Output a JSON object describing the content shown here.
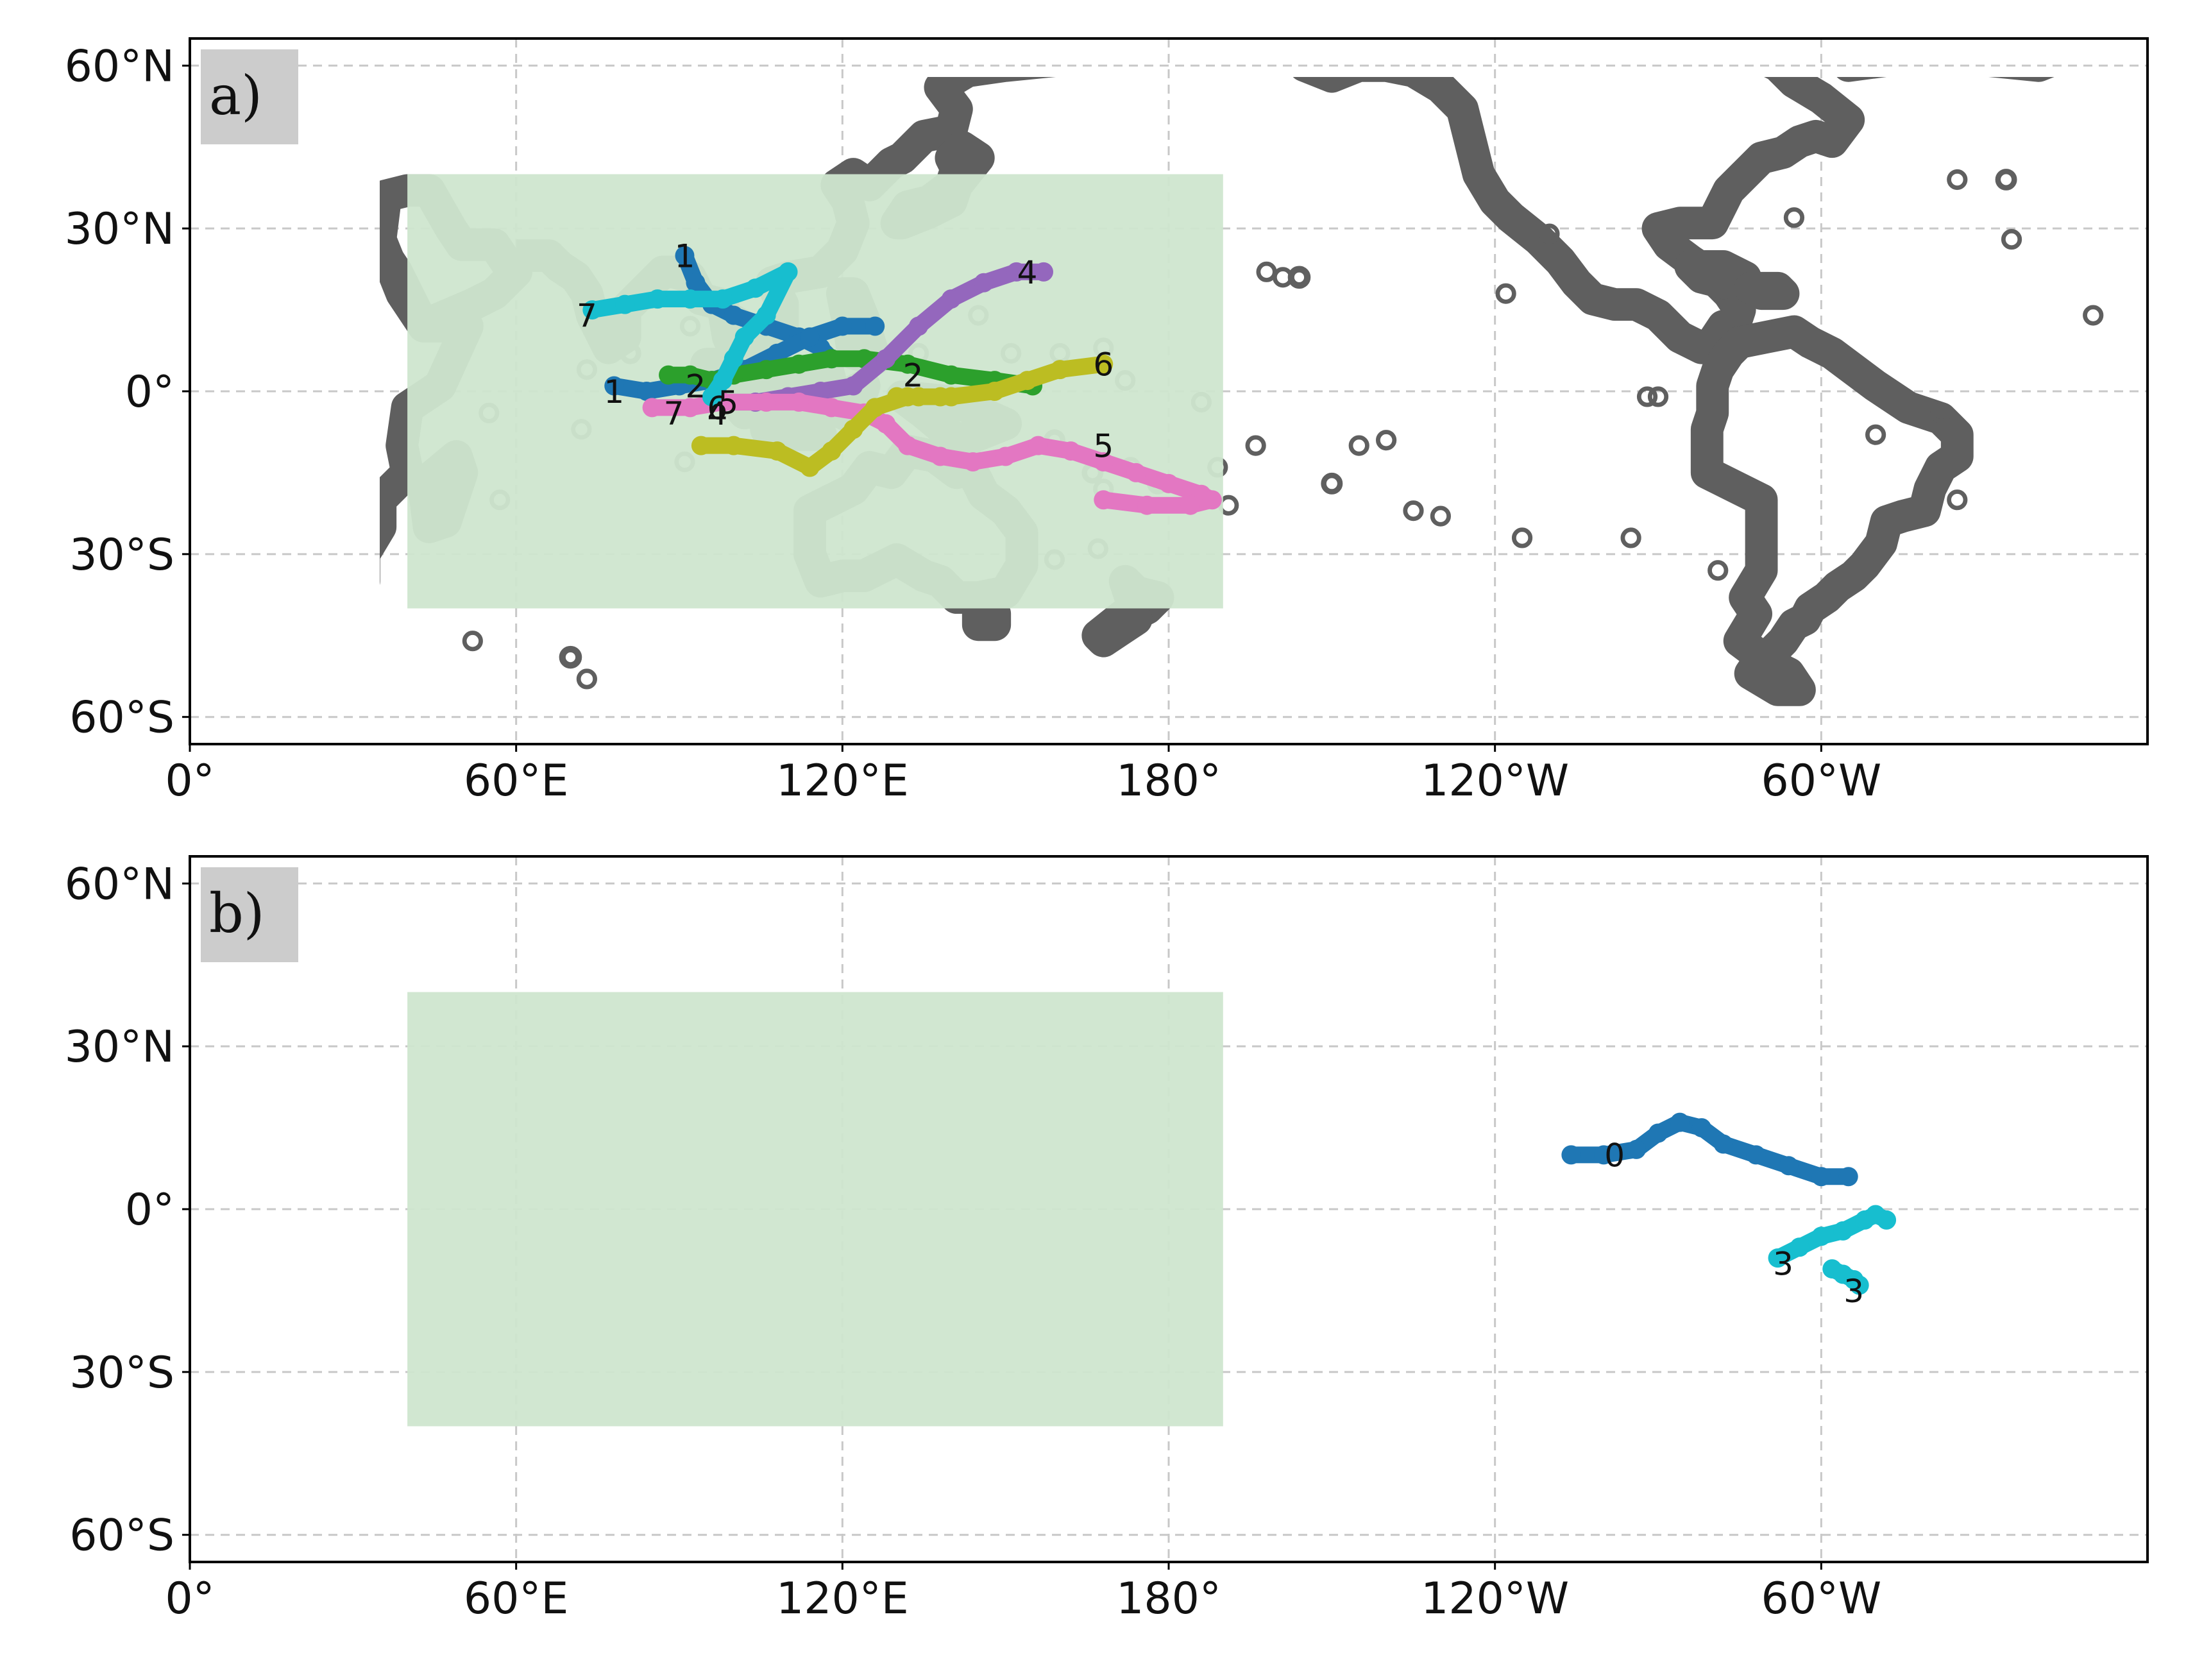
{
  "figure": {
    "panels": [
      {
        "id": "a",
        "label": "a)",
        "x_ticks": [
          "0°",
          "60°E",
          "120°E",
          "180°",
          "120°W",
          "60°W"
        ],
        "y_ticks": [
          "60°N",
          "30°N",
          "0°",
          "30°S",
          "60°S"
        ],
        "highlight_region": {
          "lon_min": 40,
          "lon_max": 190,
          "lat_min": -40,
          "lat_max": 40,
          "color": "#cfe6cf"
        }
      },
      {
        "id": "b",
        "label": "b)",
        "x_ticks": [
          "0°",
          "60°E",
          "120°E",
          "180°",
          "120°W",
          "60°W"
        ],
        "y_ticks": [
          "60°N",
          "30°N",
          "0°",
          "30°S",
          "60°S"
        ],
        "highlight_region": {
          "lon_min": 40,
          "lon_max": 190,
          "lat_min": -40,
          "lat_max": 40,
          "color": "#cfe6cf"
        }
      }
    ]
  },
  "chart_data": [
    {
      "type": "scatter",
      "panel": "a",
      "projection": "PlateCarree, central_longitude=180",
      "xlim": [
        0,
        360
      ],
      "ylim": [
        -65,
        65
      ],
      "grid": true,
      "coastline_color": "#5f5f5f",
      "tracks": [
        {
          "label": "1",
          "color": "#1f77b4",
          "points": [
            [
              91,
              25
            ],
            [
              93,
              20
            ],
            [
              96,
              16
            ],
            [
              100,
              14
            ],
            [
              106,
              12
            ],
            [
              112,
              10
            ],
            [
              116,
              8
            ],
            [
              118,
              6
            ]
          ]
        },
        {
          "label": "1",
          "color": "#1f77b4",
          "points": [
            [
              78,
              1
            ],
            [
              84,
              0
            ],
            [
              90,
              1
            ],
            [
              96,
              2
            ],
            [
              102,
              4
            ],
            [
              108,
              7
            ],
            [
              114,
              10
            ],
            [
              120,
              12
            ],
            [
              126,
              12
            ]
          ]
        },
        {
          "label": "2",
          "color": "#2ca02c",
          "points": [
            [
              88,
              3
            ],
            [
              92,
              3
            ],
            [
              96,
              2
            ],
            [
              100,
              3
            ],
            [
              106,
              4
            ],
            [
              112,
              5
            ],
            [
              118,
              6
            ],
            [
              124,
              6
            ],
            [
              132,
              5
            ],
            [
              140,
              3
            ],
            [
              148,
              2
            ],
            [
              155,
              1
            ]
          ]
        },
        {
          "label": "2",
          "color": "#bcbd22",
          "points": [
            [
              130,
              -1
            ],
            [
              134,
              -1
            ],
            [
              138,
              -1
            ]
          ]
        },
        {
          "label": "4",
          "color": "#9467bd",
          "points": [
            [
              98,
              -2
            ],
            [
              104,
              -2
            ],
            [
              110,
              -1
            ],
            [
              116,
              0
            ],
            [
              122,
              1
            ],
            [
              128,
              6
            ],
            [
              134,
              12
            ],
            [
              140,
              17
            ],
            [
              146,
              20
            ],
            [
              152,
              22
            ],
            [
              157,
              22
            ]
          ]
        },
        {
          "label": "5",
          "color": "#e377c2",
          "points": [
            [
              85,
              -3
            ],
            [
              92,
              -3
            ],
            [
              98,
              -2
            ],
            [
              106,
              -2
            ],
            [
              112,
              -2
            ],
            [
              118,
              -3
            ],
            [
              124,
              -4
            ],
            [
              128,
              -6
            ],
            [
              132,
              -10
            ],
            [
              138,
              -12
            ],
            [
              144,
              -13
            ],
            [
              150,
              -12
            ],
            [
              156,
              -10
            ],
            [
              162,
              -11
            ],
            [
              168,
              -13
            ],
            [
              174,
              -15
            ],
            [
              180,
              -17
            ],
            [
              186,
              -19
            ],
            [
              188,
              -20
            ],
            [
              184,
              -21
            ],
            [
              176,
              -21
            ],
            [
              168,
              -20
            ]
          ]
        },
        {
          "label": "6",
          "color": "#bcbd22",
          "points": [
            [
              94,
              -10
            ],
            [
              100,
              -10
            ],
            [
              108,
              -11
            ],
            [
              114,
              -14
            ],
            [
              118,
              -11
            ],
            [
              122,
              -7
            ],
            [
              126,
              -3
            ],
            [
              132,
              -1
            ],
            [
              140,
              -1
            ],
            [
              148,
              0
            ],
            [
              154,
              2
            ],
            [
              160,
              4
            ],
            [
              168,
              5
            ]
          ]
        },
        {
          "label": "7",
          "color": "#17becf",
          "points": [
            [
              74,
              15
            ],
            [
              80,
              16
            ],
            [
              86,
              17
            ],
            [
              92,
              17
            ],
            [
              98,
              17
            ],
            [
              104,
              19
            ],
            [
              110,
              22
            ],
            [
              106,
              14
            ],
            [
              102,
              10
            ],
            [
              100,
              6
            ],
            [
              98,
              2
            ],
            [
              96,
              -1
            ]
          ]
        }
      ],
      "annotations": [
        {
          "text": "1",
          "lon": 91,
          "lat": 25
        },
        {
          "text": "4",
          "lon": 154,
          "lat": 22
        },
        {
          "text": "7",
          "lon": 73,
          "lat": 14
        },
        {
          "text": "1",
          "lon": 78,
          "lat": 0
        },
        {
          "text": "2",
          "lon": 93,
          "lat": 1
        },
        {
          "text": "2",
          "lon": 133,
          "lat": 3
        },
        {
          "text": "6",
          "lon": 168,
          "lat": 5
        },
        {
          "text": "7",
          "lon": 89,
          "lat": -4
        },
        {
          "text": "6",
          "lon": 97,
          "lat": -3
        },
        {
          "text": "5",
          "lon": 99,
          "lat": -2
        },
        {
          "text": "4",
          "lon": 97,
          "lat": -4
        },
        {
          "text": "5",
          "lon": 168,
          "lat": -10
        }
      ]
    },
    {
      "type": "scatter",
      "panel": "b",
      "projection": "PlateCarree, central_longitude=180",
      "xlim": [
        0,
        360
      ],
      "ylim": [
        -65,
        65
      ],
      "grid": true,
      "coastline_color": "#5f5f5f",
      "tracks": [
        {
          "label": "0",
          "color": "#1f77b4",
          "points": [
            [
              254,
              10
            ],
            [
              260,
              10
            ],
            [
              266,
              11
            ],
            [
              270,
              14
            ],
            [
              274,
              16
            ],
            [
              278,
              15
            ],
            [
              282,
              12
            ],
            [
              288,
              10
            ],
            [
              294,
              8
            ],
            [
              300,
              6
            ],
            [
              305,
              6
            ]
          ]
        },
        {
          "label": "3",
          "color": "#17becf",
          "points": [
            [
              292,
              -9
            ],
            [
              296,
              -7
            ],
            [
              300,
              -5
            ],
            [
              304,
              -4
            ],
            [
              308,
              -2
            ],
            [
              310,
              -1
            ],
            [
              312,
              -2
            ]
          ]
        },
        {
          "label": "3",
          "color": "#17becf",
          "points": [
            [
              302,
              -11
            ],
            [
              304,
              -12
            ],
            [
              306,
              -13
            ],
            [
              307,
              -14
            ]
          ]
        }
      ],
      "annotations": [
        {
          "text": "0",
          "lon": 262,
          "lat": 10
        },
        {
          "text": "3",
          "lon": 293,
          "lat": -10
        },
        {
          "text": "3",
          "lon": 306,
          "lat": -15
        }
      ]
    }
  ]
}
